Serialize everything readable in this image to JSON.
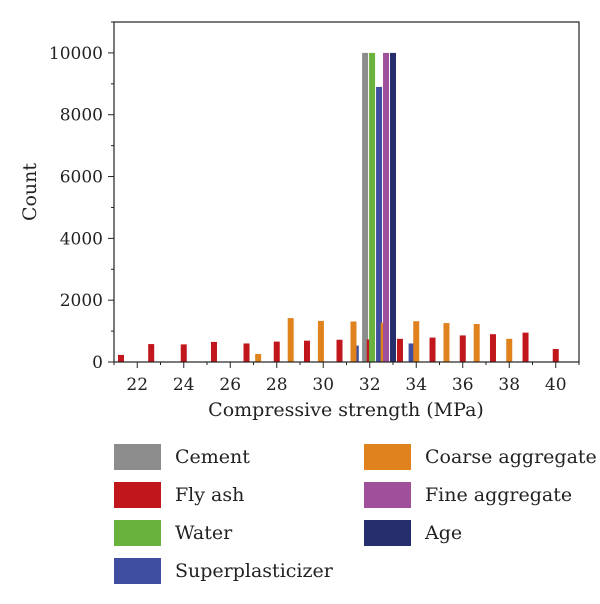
{
  "chart_data": {
    "type": "bar",
    "title": "",
    "xlabel": "Compressive strength (MPa)",
    "ylabel": "Count",
    "xlim": [
      21,
      41
    ],
    "ylim": [
      0,
      11000
    ],
    "xticks": [
      "22",
      "24",
      "26",
      "28",
      "30",
      "32",
      "34",
      "36",
      "38",
      "40"
    ],
    "yticks": [
      "0",
      "2000",
      "4000",
      "6000",
      "8000",
      "10000"
    ],
    "legend_position": "bottom",
    "series": [
      {
        "name": "Cement",
        "color": "#8c8c8c",
        "points": [
          [
            31.8,
            10000
          ]
        ]
      },
      {
        "name": "Fly ash",
        "color": "#c0161c",
        "points": [
          [
            21.3,
            230
          ],
          [
            22.6,
            580
          ],
          [
            24.0,
            570
          ],
          [
            25.3,
            650
          ],
          [
            26.7,
            600
          ],
          [
            28.0,
            660
          ],
          [
            29.3,
            690
          ],
          [
            30.7,
            720
          ],
          [
            32.0,
            730
          ],
          [
            33.3,
            750
          ],
          [
            34.7,
            790
          ],
          [
            36.0,
            860
          ],
          [
            37.3,
            900
          ],
          [
            38.7,
            950
          ],
          [
            40.0,
            420
          ]
        ]
      },
      {
        "name": "Water",
        "color": "#6ab23e",
        "points": [
          [
            32.1,
            10000
          ]
        ]
      },
      {
        "name": "Superplasticizer",
        "color": "#3f4ea0",
        "points": [
          [
            31.4,
            530
          ],
          [
            32.4,
            8900
          ],
          [
            33.8,
            600
          ]
        ]
      },
      {
        "name": "Coarse aggregate",
        "color": "#e0831e",
        "points": [
          [
            27.2,
            260
          ],
          [
            28.6,
            1420
          ],
          [
            29.9,
            1330
          ],
          [
            31.3,
            1310
          ],
          [
            32.6,
            1270
          ],
          [
            34.0,
            1320
          ],
          [
            35.3,
            1260
          ],
          [
            36.6,
            1230
          ],
          [
            38.0,
            750
          ]
        ]
      },
      {
        "name": "Fine aggregate",
        "color": "#a0509a",
        "points": [
          [
            32.7,
            10000
          ]
        ]
      },
      {
        "name": "Age",
        "color": "#262e6e",
        "points": [
          [
            33.0,
            10000
          ]
        ]
      }
    ]
  },
  "legend": {
    "items": [
      {
        "label": "Cement",
        "color": "#8c8c8c"
      },
      {
        "label": "Fly ash",
        "color": "#c0161c"
      },
      {
        "label": "Water",
        "color": "#6ab23e"
      },
      {
        "label": "Superplasticizer",
        "color": "#3f4ea0"
      },
      {
        "label": "Coarse aggregate",
        "color": "#e0831e"
      },
      {
        "label": "Fine aggregate",
        "color": "#a0509a"
      },
      {
        "label": "Age",
        "color": "#262e6e"
      }
    ]
  }
}
